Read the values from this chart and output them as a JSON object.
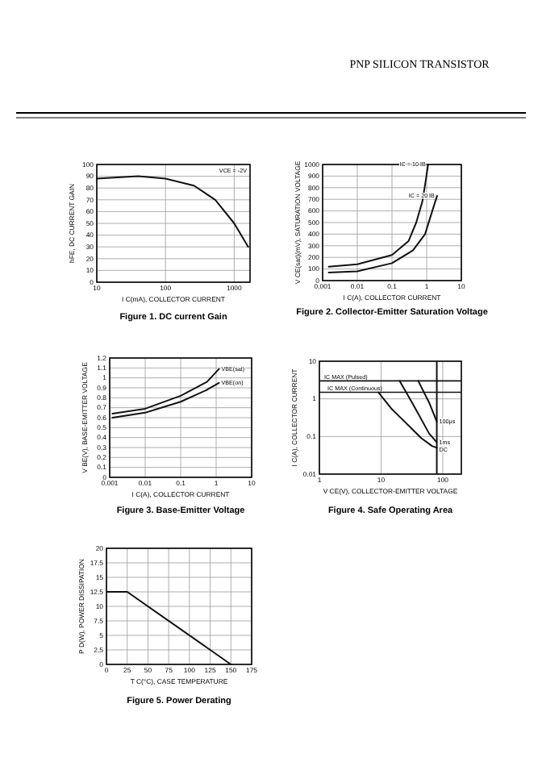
{
  "chart_data": [
    {
      "type": "other",
      "title": "PNP SILICON TRANSISTOR"
    },
    {
      "type": "line",
      "title": "Figure 1. DC current Gain",
      "xlabel": "I C(mA), COLLECTOR CURRENT",
      "ylabel": "hFE, DC CURRENT GAIN",
      "log": "x",
      "grid": true,
      "xlim": [
        10,
        1700
      ],
      "ylim": [
        0,
        100
      ],
      "xticks": [
        10,
        100,
        1000
      ],
      "yticks": [
        0,
        10,
        20,
        30,
        40,
        50,
        60,
        70,
        80,
        90,
        100
      ],
      "annotations": [
        "VCE = -2V"
      ],
      "series": [
        {
          "color": "#111111",
          "x": [
            10,
            20,
            40,
            100,
            260,
            530,
            1000,
            1600
          ],
          "values": [
            88,
            89,
            90,
            88,
            82,
            70,
            50,
            30
          ]
        }
      ]
    },
    {
      "type": "line",
      "title": "Figure 2. Collector-Emitter Saturation Voltage",
      "xlabel": "I C(A), COLLECTOR CURRENT",
      "ylabel": "V CE(sat)(mV), SATURATION VOLTAGE",
      "log": "x",
      "grid": true,
      "xlim": [
        0.001,
        10
      ],
      "ylim": [
        0,
        1000
      ],
      "xticks": [
        0.001,
        0.01,
        0.1,
        1,
        10
      ],
      "yticks": [
        0,
        100,
        200,
        300,
        400,
        500,
        600,
        700,
        800,
        900,
        1000
      ],
      "series": [
        {
          "name": "IC = 10 IB",
          "color": "#111111",
          "x": [
            0.0015,
            0.01,
            0.1,
            0.3,
            0.5,
            0.75,
            0.95,
            1.1
          ],
          "values": [
            120,
            140,
            220,
            340,
            500,
            680,
            870,
            1000
          ]
        },
        {
          "name": "IC = 20 IB",
          "color": "#111111",
          "x": [
            0.0015,
            0.01,
            0.1,
            0.4,
            0.9,
            1.6,
            2
          ],
          "values": [
            70,
            80,
            150,
            260,
            400,
            640,
            730
          ]
        }
      ]
    },
    {
      "type": "line",
      "title": "Figure 3. Base-Emitter Voltage",
      "xlabel": "I C(A), COLLECTOR CURRENT",
      "ylabel": "V BE(V), BASE-EMITTER VOLTAGE",
      "log": "x",
      "grid": true,
      "xlim": [
        0.001,
        10
      ],
      "ylim": [
        0,
        1.2
      ],
      "xticks": [
        0.001,
        0.01,
        0.1,
        1,
        10
      ],
      "yticks": [
        0,
        0.1,
        0.2,
        0.3,
        0.4,
        0.5,
        0.6,
        0.7,
        0.8,
        0.9,
        1,
        1.1,
        1.2
      ],
      "series": [
        {
          "name": "VBE(sat)",
          "color": "#111111",
          "x": [
            0.0012,
            0.01,
            0.1,
            0.55,
            1.2
          ],
          "values": [
            0.64,
            0.69,
            0.82,
            0.96,
            1.09
          ]
        },
        {
          "name": "VBE(on)",
          "color": "#111111",
          "x": [
            0.0012,
            0.01,
            0.1,
            0.55,
            1.2
          ],
          "values": [
            0.6,
            0.65,
            0.76,
            0.88,
            0.95
          ]
        }
      ]
    },
    {
      "type": "line",
      "title": "Figure 4. Safe Operating Area",
      "xlabel": "V CE(V), COLLECTOR-EMITTER VOLTAGE",
      "ylabel": "I C(A), COLLECTOR CURRENT",
      "log": "xy",
      "grid": true,
      "xlim": [
        1,
        200
      ],
      "ylim": [
        0.01,
        10
      ],
      "xticks": [
        1,
        10,
        100
      ],
      "yticks": [
        0.01,
        0.1,
        1,
        10
      ],
      "ref_lines": [
        {
          "axis": "y",
          "value": 3,
          "label": "IC MAX (Pulsed)"
        },
        {
          "axis": "y",
          "value": 1.5,
          "label": "IC MAX (Continuous)"
        },
        {
          "axis": "x",
          "value": 80
        }
      ],
      "series": [
        {
          "name": "DC",
          "color": "#111111",
          "x": [
            9,
            15,
            45,
            67,
            80
          ],
          "values": [
            1.5,
            0.53,
            0.09,
            0.056,
            0.05
          ]
        },
        {
          "name": "1ms",
          "color": "#111111",
          "x": [
            20,
            35,
            60,
            80
          ],
          "values": [
            3,
            0.6,
            0.12,
            0.07
          ]
        },
        {
          "name": "100μs",
          "color": "#111111",
          "x": [
            40,
            60,
            80
          ],
          "values": [
            3,
            0.8,
            0.25
          ]
        }
      ]
    },
    {
      "type": "line",
      "title": "Figure 5. Power Derating",
      "xlabel": "T C(°C), CASE TEMPERATURE",
      "ylabel": "P D(W), POWER DISSIPATION",
      "grid": true,
      "xlim": [
        0,
        175
      ],
      "ylim": [
        0,
        20
      ],
      "xticks": [
        0,
        25,
        50,
        75,
        100,
        125,
        150,
        175
      ],
      "yticks": [
        0,
        2.5,
        5,
        7.5,
        10,
        12.5,
        15,
        17.5,
        20
      ],
      "series": [
        {
          "color": "#111111",
          "x": [
            0,
            25,
            150
          ],
          "values": [
            12.5,
            12.5,
            0
          ]
        }
      ]
    }
  ]
}
